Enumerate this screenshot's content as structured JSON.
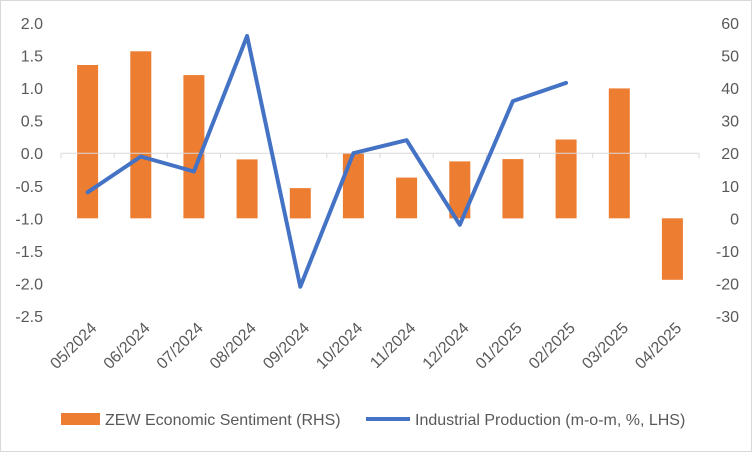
{
  "chart_data": {
    "type": "bar+line",
    "title": "",
    "categories": [
      "05/2024",
      "06/2024",
      "07/2024",
      "08/2024",
      "09/2024",
      "10/2024",
      "11/2024",
      "12/2024",
      "01/2025",
      "02/2025",
      "03/2025",
      "04/2025"
    ],
    "left_axis": {
      "range": [
        -2.5,
        2.0
      ],
      "step": 0.5,
      "tick_labels": [
        "2.0",
        "1.5",
        "1.0",
        "0.5",
        "0.0",
        "-0.5",
        "-1.0",
        "-1.5",
        "-2.0",
        "-2.5"
      ]
    },
    "right_axis": {
      "range": [
        -30,
        60
      ],
      "step": 10,
      "tick_labels": [
        "60",
        "50",
        "40",
        "30",
        "20",
        "10",
        "0",
        "-10",
        "-20",
        "-30"
      ]
    },
    "series": [
      {
        "name": "ZEW Economic Sentiment (RHS)",
        "kind": "bar",
        "axis": "right",
        "color": "#ED7D31",
        "values": [
          47.1,
          51.3,
          44.0,
          18.1,
          9.3,
          19.9,
          12.5,
          17.5,
          18.2,
          24.2,
          39.9,
          -18.9
        ]
      },
      {
        "name": "Industrial Production (m-o-m, %, LHS)",
        "kind": "line",
        "axis": "left",
        "color": "#4472C4",
        "values": [
          -0.6,
          -0.05,
          -0.28,
          1.8,
          -2.05,
          0.0,
          0.2,
          -1.1,
          0.8,
          1.08,
          null,
          null
        ]
      }
    ],
    "legend_position": "bottom",
    "grid": false
  }
}
